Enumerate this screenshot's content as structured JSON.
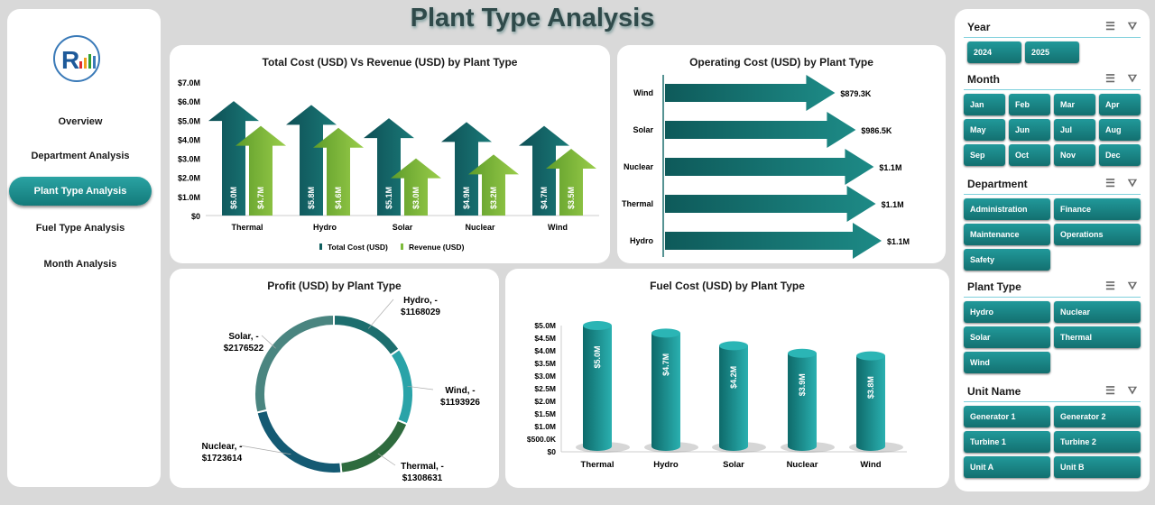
{
  "title": "Plant Type Analysis",
  "nav": [
    "Overview",
    "Department Analysis",
    "Plant Type Analysis",
    "Fuel Type Analysis",
    "Month Analysis"
  ],
  "active_nav": "Plant Type Analysis",
  "colors": {
    "accent": "#1a8a8a",
    "cost": "#0f5e5e",
    "revenue": "#7dbb3a"
  },
  "chart_data": [
    {
      "type": "bar",
      "title": "Total Cost (USD) Vs Revenue (USD) by Plant Type",
      "categories": [
        "Thermal",
        "Hydro",
        "Solar",
        "Nuclear",
        "Wind"
      ],
      "series": [
        {
          "name": "Total Cost (USD)",
          "values": [
            6.0,
            5.8,
            5.1,
            4.9,
            4.7
          ],
          "labels": [
            "$6.0M",
            "$5.8M",
            "$5.1M",
            "$4.9M",
            "$4.7M"
          ]
        },
        {
          "name": "Revenue (USD)",
          "values": [
            4.7,
            4.6,
            3.0,
            3.2,
            3.5
          ],
          "labels": [
            "$4.7M",
            "$4.6M",
            "$3.0M",
            "$3.2M",
            "$3.5M"
          ]
        }
      ],
      "yticks": [
        "$0",
        "$1.0M",
        "$2.0M",
        "$3.0M",
        "$4.0M",
        "$5.0M",
        "$6.0M",
        "$7.0M"
      ],
      "ylim": [
        0,
        7
      ],
      "unit": "M USD",
      "legend": "bottom"
    },
    {
      "type": "bar",
      "orientation": "horizontal",
      "title": "Operating Cost (USD) by Plant Type",
      "categories": [
        "Wind",
        "Solar",
        "Nuclear",
        "Thermal",
        "Hydro"
      ],
      "values": [
        879300,
        986500,
        1080000,
        1090000,
        1120000
      ],
      "labels": [
        "$879.3K",
        "$986.5K",
        "$1.1M",
        "$1.1M",
        "$1.1M"
      ]
    },
    {
      "type": "pie",
      "variant": "donut",
      "title": "Profit (USD) by Plant Type",
      "categories": [
        "Hydro",
        "Wind",
        "Thermal",
        "Nuclear",
        "Solar"
      ],
      "values": [
        -1168029,
        -1193926,
        -1308631,
        -1723614,
        -2176522
      ],
      "labels": [
        [
          "Hydro, -",
          "$1168029"
        ],
        [
          "Wind, -",
          "$1193926"
        ],
        [
          "Thermal, -",
          "$1308631"
        ],
        [
          "Nuclear, -",
          "$1723614"
        ],
        [
          "Solar, -",
          "$2176522"
        ]
      ],
      "colors": [
        "#1d6e6e",
        "#2aa3a8",
        "#2e6b3e",
        "#145a73",
        "#4a8580"
      ]
    },
    {
      "type": "bar",
      "variant": "cylinder",
      "title": "Fuel Cost (USD) by Plant Type",
      "categories": [
        "Thermal",
        "Hydro",
        "Solar",
        "Nuclear",
        "Wind"
      ],
      "values": [
        5.0,
        4.7,
        4.2,
        3.9,
        3.8
      ],
      "labels": [
        "$5.0M",
        "$4.7M",
        "$4.2M",
        "$3.9M",
        "$3.8M"
      ],
      "yticks": [
        "$0",
        "$500.0K",
        "$1.0M",
        "$1.5M",
        "$2.0M",
        "$2.5M",
        "$3.0M",
        "$3.5M",
        "$4.0M",
        "$4.5M",
        "$5.0M"
      ],
      "ylim": [
        0,
        5
      ],
      "unit": "M USD"
    }
  ],
  "slicers": [
    {
      "title": "Year",
      "cols": 4,
      "items": [
        "2024",
        "2025"
      ]
    },
    {
      "title": "Month",
      "cols": 4,
      "items": [
        "Jan",
        "Feb",
        "Mar",
        "Apr",
        "May",
        "Jun",
        "Jul",
        "Aug",
        "Sep",
        "Oct",
        "Nov",
        "Dec"
      ]
    },
    {
      "title": "Department",
      "cols": 2,
      "items": [
        "Administration",
        "Finance",
        "Maintenance",
        "Operations",
        "Safety"
      ]
    },
    {
      "title": "Plant Type",
      "cols": 2,
      "items": [
        "Hydro",
        "Nuclear",
        "Solar",
        "Thermal",
        "Wind"
      ]
    },
    {
      "title": "Unit Name",
      "cols": 2,
      "items": [
        "Generator 1",
        "Generator 2",
        "Turbine 1",
        "Turbine 2",
        "Unit A",
        "Unit B"
      ]
    }
  ]
}
